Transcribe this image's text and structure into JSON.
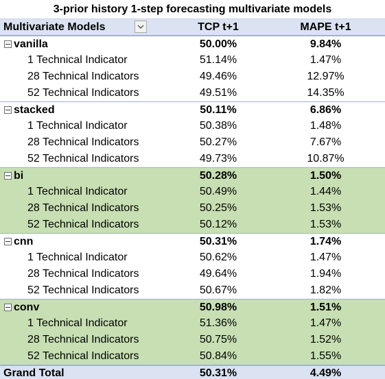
{
  "title": "3-prior history 1-step forecasting multivariate models",
  "header": {
    "col1": "Multivariate Models",
    "col2": "TCP t+1",
    "col3": "MAPE t+1"
  },
  "groups": [
    {
      "name": "vanilla",
      "tcp": "50.00%",
      "mape": "9.84%",
      "rows": [
        {
          "label": "1 Technical Indicator",
          "tcp": "51.14%",
          "mape": "1.47%"
        },
        {
          "label": "28 Technical Indicators",
          "tcp": "49.46%",
          "mape": "12.97%"
        },
        {
          "label": "52 Technical Indicators",
          "tcp": "49.51%",
          "mape": "14.35%"
        }
      ]
    },
    {
      "name": "stacked",
      "tcp": "50.11%",
      "mape": "6.86%",
      "rows": [
        {
          "label": "1 Technical Indicator",
          "tcp": "50.38%",
          "mape": "1.48%"
        },
        {
          "label": "28 Technical Indicators",
          "tcp": "50.27%",
          "mape": "7.67%"
        },
        {
          "label": "52 Technical Indicators",
          "tcp": "49.73%",
          "mape": "10.87%"
        }
      ]
    },
    {
      "name": "bi",
      "tcp": "50.28%",
      "mape": "1.50%",
      "rows": [
        {
          "label": "1 Technical Indicator",
          "tcp": "50.49%",
          "mape": "1.44%"
        },
        {
          "label": "28 Technical Indicators",
          "tcp": "50.25%",
          "mape": "1.53%"
        },
        {
          "label": "52 Technical Indicators",
          "tcp": "50.12%",
          "mape": "1.53%"
        }
      ]
    },
    {
      "name": "cnn",
      "tcp": "50.31%",
      "mape": "1.74%",
      "rows": [
        {
          "label": "1 Technical Indicator",
          "tcp": "50.62%",
          "mape": "1.47%"
        },
        {
          "label": "28 Technical Indicators",
          "tcp": "49.64%",
          "mape": "1.94%"
        },
        {
          "label": "52 Technical Indicators",
          "tcp": "50.67%",
          "mape": "1.82%"
        }
      ]
    },
    {
      "name": "conv",
      "tcp": "50.98%",
      "mape": "1.51%",
      "rows": [
        {
          "label": "1 Technical Indicator",
          "tcp": "51.36%",
          "mape": "1.47%"
        },
        {
          "label": "28 Technical Indicators",
          "tcp": "50.75%",
          "mape": "1.52%"
        },
        {
          "label": "52 Technical Indicators",
          "tcp": "50.84%",
          "mape": "1.55%"
        }
      ]
    }
  ],
  "total": {
    "label": "Grand Total",
    "tcp": "50.31%",
    "mape": "4.49%"
  },
  "colors": {
    "header_bg": "#dbe3f2",
    "highlight_bg": "#c7dfb3",
    "border": "#9fb2d6"
  }
}
